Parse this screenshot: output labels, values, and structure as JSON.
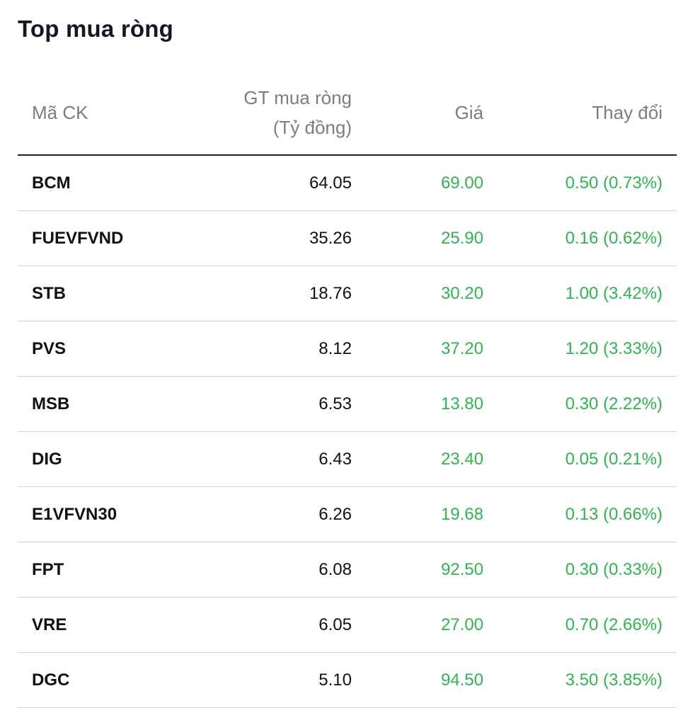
{
  "title": "Top mua ròng",
  "headers": {
    "symbol": "Mã CK",
    "value_line1": "GT mua ròng",
    "value_line2": "(Tỷ đồng)",
    "price": "Giá",
    "change": "Thay đổi"
  },
  "colors": {
    "up": "#2fb54f",
    "text": "#111111",
    "header_text": "#7d7d7d"
  },
  "rows": [
    {
      "symbol": "BCM",
      "net_value": "64.05",
      "price": "69.00",
      "change": "0.50 (0.73%)"
    },
    {
      "symbol": "FUEVFVND",
      "net_value": "35.26",
      "price": "25.90",
      "change": "0.16 (0.62%)"
    },
    {
      "symbol": "STB",
      "net_value": "18.76",
      "price": "30.20",
      "change": "1.00 (3.42%)"
    },
    {
      "symbol": "PVS",
      "net_value": "8.12",
      "price": "37.20",
      "change": "1.20 (3.33%)"
    },
    {
      "symbol": "MSB",
      "net_value": "6.53",
      "price": "13.80",
      "change": "0.30 (2.22%)"
    },
    {
      "symbol": "DIG",
      "net_value": "6.43",
      "price": "23.40",
      "change": "0.05 (0.21%)"
    },
    {
      "symbol": "E1VFVN30",
      "net_value": "6.26",
      "price": "19.68",
      "change": "0.13 (0.66%)"
    },
    {
      "symbol": "FPT",
      "net_value": "6.08",
      "price": "92.50",
      "change": "0.30 (0.33%)"
    },
    {
      "symbol": "VRE",
      "net_value": "6.05",
      "price": "27.00",
      "change": "0.70 (2.66%)"
    },
    {
      "symbol": "DGC",
      "net_value": "5.10",
      "price": "94.50",
      "change": "3.50 (3.85%)"
    }
  ]
}
